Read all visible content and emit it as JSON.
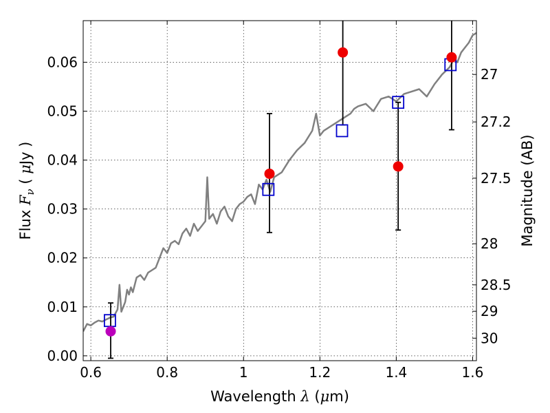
{
  "chart_data": {
    "type": "scatter",
    "title": "",
    "xlabel": {
      "prefix": "Wavelength",
      "symbol": "λ",
      "unit_open": "(",
      "unit_mu": "μ",
      "unit_rest": "m)"
    },
    "ylabel": {
      "prefix": "Flux",
      "symbol": "F",
      "subscript": "ν",
      "unit_open": "(",
      "unit_mu": "μ",
      "unit_rest": "Jy )"
    },
    "y2label": "Magnitude (AB)",
    "xlim": [
      0.58,
      1.61
    ],
    "ylim": [
      -0.001,
      0.0685
    ],
    "grid": true,
    "x_ticks": [
      0.6,
      0.8,
      1.0,
      1.2,
      1.4,
      1.6
    ],
    "x_tick_labels": [
      "0.6",
      "0.8",
      "1",
      "1.2",
      "1.4",
      "1.6"
    ],
    "y_ticks": [
      0.0,
      0.01,
      0.02,
      0.03,
      0.04,
      0.05,
      0.06
    ],
    "y_tick_labels": [
      "0.00",
      "0.01",
      "0.02",
      "0.03",
      "0.04",
      "0.05",
      "0.06"
    ],
    "y2_ticks": [
      {
        "label": "27",
        "flux": 0.0575
      },
      {
        "label": "27.2",
        "flux": 0.0478
      },
      {
        "label": "27.5",
        "flux": 0.0363
      },
      {
        "label": "28",
        "flux": 0.0229
      },
      {
        "label": "28.5",
        "flux": 0.0145
      },
      {
        "label": "29",
        "flux": 0.0091
      },
      {
        "label": "30",
        "flux": 0.0036
      }
    ],
    "series": [
      {
        "type": "line",
        "color": "#808080",
        "x": [
          0.58,
          0.59,
          0.6,
          0.61,
          0.62,
          0.63,
          0.64,
          0.65,
          0.66,
          0.67,
          0.675,
          0.68,
          0.685,
          0.69,
          0.695,
          0.7,
          0.705,
          0.71,
          0.72,
          0.73,
          0.74,
          0.75,
          0.76,
          0.77,
          0.78,
          0.79,
          0.8,
          0.81,
          0.82,
          0.83,
          0.84,
          0.85,
          0.86,
          0.87,
          0.88,
          0.89,
          0.9,
          0.905,
          0.91,
          0.915,
          0.92,
          0.93,
          0.94,
          0.95,
          0.96,
          0.97,
          0.98,
          0.99,
          1.0,
          1.01,
          1.02,
          1.03,
          1.04,
          1.05,
          1.06,
          1.07,
          1.08,
          1.09,
          1.1,
          1.12,
          1.14,
          1.16,
          1.18,
          1.19,
          1.2,
          1.21,
          1.22,
          1.23,
          1.24,
          1.25,
          1.26,
          1.27,
          1.28,
          1.29,
          1.3,
          1.32,
          1.34,
          1.36,
          1.38,
          1.4,
          1.42,
          1.44,
          1.46,
          1.48,
          1.5,
          1.52,
          1.54,
          1.55,
          1.56,
          1.57,
          1.58,
          1.59,
          1.6,
          1.61
        ],
        "y": [
          0.005,
          0.0065,
          0.0062,
          0.0068,
          0.0072,
          0.007,
          0.0074,
          0.0078,
          0.008,
          0.0095,
          0.0145,
          0.009,
          0.01,
          0.011,
          0.0135,
          0.0125,
          0.014,
          0.013,
          0.016,
          0.0165,
          0.0155,
          0.017,
          0.0175,
          0.018,
          0.02,
          0.022,
          0.021,
          0.023,
          0.0235,
          0.0228,
          0.025,
          0.026,
          0.0245,
          0.027,
          0.0255,
          0.0265,
          0.0275,
          0.0365,
          0.028,
          0.0285,
          0.029,
          0.027,
          0.0295,
          0.0305,
          0.0285,
          0.0275,
          0.03,
          0.031,
          0.0315,
          0.0325,
          0.033,
          0.031,
          0.035,
          0.034,
          0.036,
          0.0335,
          0.0365,
          0.037,
          0.0375,
          0.04,
          0.042,
          0.0435,
          0.046,
          0.0495,
          0.045,
          0.046,
          0.0465,
          0.047,
          0.0475,
          0.048,
          0.0485,
          0.049,
          0.0495,
          0.0505,
          0.051,
          0.0515,
          0.05,
          0.0525,
          0.053,
          0.052,
          0.0535,
          0.054,
          0.0545,
          0.053,
          0.0555,
          0.0575,
          0.059,
          0.0605,
          0.06,
          0.062,
          0.063,
          0.064,
          0.0655,
          0.066
        ]
      },
      {
        "type": "points",
        "marker": "square-open",
        "color": "#0000cc",
        "x": [
          0.65,
          1.065,
          1.258,
          1.405,
          1.542
        ],
        "y": [
          0.0072,
          0.034,
          0.046,
          0.0518,
          0.0595
        ]
      },
      {
        "type": "points",
        "marker": "circle-filled",
        "color": "#ee0000",
        "x": [
          1.068,
          1.26,
          1.405,
          1.545
        ],
        "y": [
          0.0372,
          0.062,
          0.0387,
          0.061
        ],
        "yerr_low": [
          0.0252,
          0.0472,
          0.0257,
          0.0462
        ],
        "yerr_high": [
          0.0495,
          0.08,
          0.0518,
          0.08
        ]
      },
      {
        "type": "points",
        "marker": "circle-filled",
        "color": "#bb00bb",
        "x": [
          0.652
        ],
        "y": [
          0.005
        ],
        "yerr_low": [
          -0.0005
        ],
        "yerr_high": [
          0.0108
        ]
      }
    ]
  }
}
